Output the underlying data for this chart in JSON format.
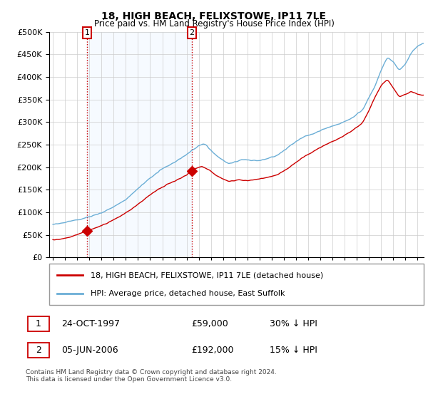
{
  "title": "18, HIGH BEACH, FELIXSTOWE, IP11 7LE",
  "subtitle": "Price paid vs. HM Land Registry's House Price Index (HPI)",
  "legend_line1": "18, HIGH BEACH, FELIXSTOWE, IP11 7LE (detached house)",
  "legend_line2": "HPI: Average price, detached house, East Suffolk",
  "annotation1_label": "1",
  "annotation1_date": "24-OCT-1997",
  "annotation1_price": "£59,000",
  "annotation1_hpi": "30% ↓ HPI",
  "annotation2_label": "2",
  "annotation2_date": "05-JUN-2006",
  "annotation2_price": "£192,000",
  "annotation2_hpi": "15% ↓ HPI",
  "footer": "Contains HM Land Registry data © Crown copyright and database right 2024.\nThis data is licensed under the Open Government Licence v3.0.",
  "hpi_color": "#6baed6",
  "price_color": "#cc0000",
  "marker_color": "#cc0000",
  "vline_color": "#cc0000",
  "shade_color": "#ddeeff",
  "ylim": [
    0,
    500000
  ],
  "yticks": [
    0,
    50000,
    100000,
    150000,
    200000,
    250000,
    300000,
    350000,
    400000,
    450000,
    500000
  ],
  "sale1_x": 1997.82,
  "sale1_y": 59000,
  "sale2_x": 2006.43,
  "sale2_y": 192000,
  "xmin": 1994.7,
  "xmax": 2025.5
}
